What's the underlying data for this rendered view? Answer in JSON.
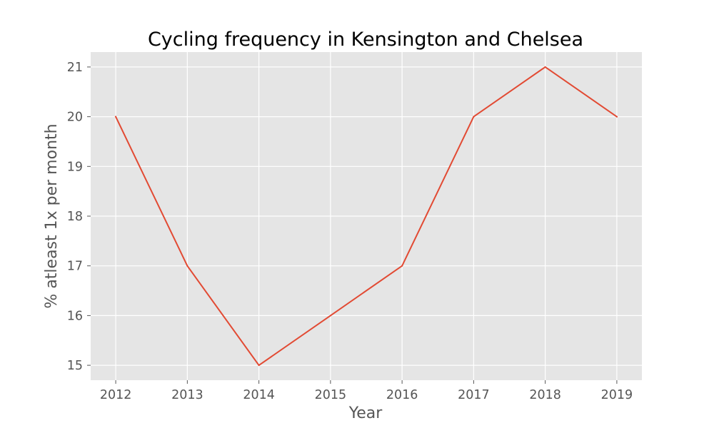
{
  "chart_data": {
    "type": "line",
    "title": "Cycling frequency in Kensington and Chelsea",
    "xlabel": "Year",
    "ylabel": "% atleast 1x per month",
    "x": [
      2012,
      2013,
      2014,
      2015,
      2016,
      2017,
      2018,
      2019
    ],
    "series": [
      {
        "values": [
          20,
          17,
          15,
          16,
          17,
          20,
          21,
          20
        ]
      }
    ],
    "xlim": [
      2011.65,
      2019.35
    ],
    "ylim": [
      14.7,
      21.3
    ],
    "xticks": [
      "2012",
      "2013",
      "2014",
      "2015",
      "2016",
      "2017",
      "2018",
      "2019"
    ],
    "yticks": [
      "15",
      "16",
      "17",
      "18",
      "19",
      "20",
      "21"
    ],
    "grid": true,
    "legend": "none",
    "colors": {
      "plot_background": "#e5e5e5",
      "grid": "#ffffff",
      "line": "#e24a33",
      "tick_text": "#555555",
      "title_text": "#000000"
    }
  }
}
